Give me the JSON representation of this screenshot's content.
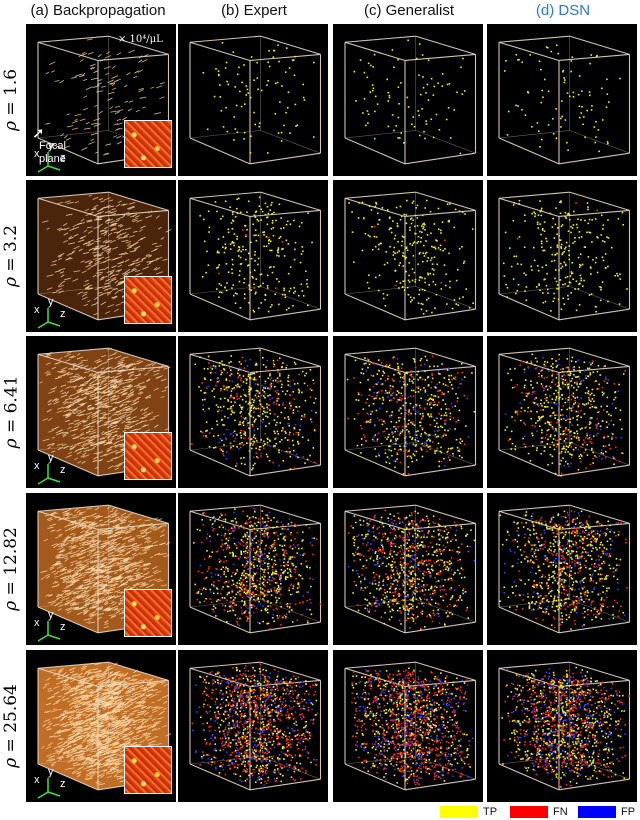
{
  "headers": [
    {
      "text": "(a) Backpropagation",
      "color": "#111111"
    },
    {
      "text": "(b) Expert",
      "color": "#111111"
    },
    {
      "text": "(c) Generalist",
      "color": "#111111"
    },
    {
      "text": "(d) DSN",
      "color": "#2a7bd0"
    }
  ],
  "rows": [
    {
      "rho": "1.6",
      "unit": "× 10⁴/μL"
    },
    {
      "rho": "3.2"
    },
    {
      "rho": "6.41"
    },
    {
      "rho": "12.82"
    },
    {
      "rho": "25.64"
    }
  ],
  "rho_symbol": "ρ = ",
  "annotations": {
    "focal_plane": "Focal plane",
    "axes": {
      "x": "x",
      "y": "y",
      "z": "z"
    }
  },
  "legend": [
    {
      "label": "TP",
      "color": "#ffff00"
    },
    {
      "label": "FN",
      "color": "#ff0000"
    },
    {
      "label": "FP",
      "color": "#0000ff"
    }
  ]
}
